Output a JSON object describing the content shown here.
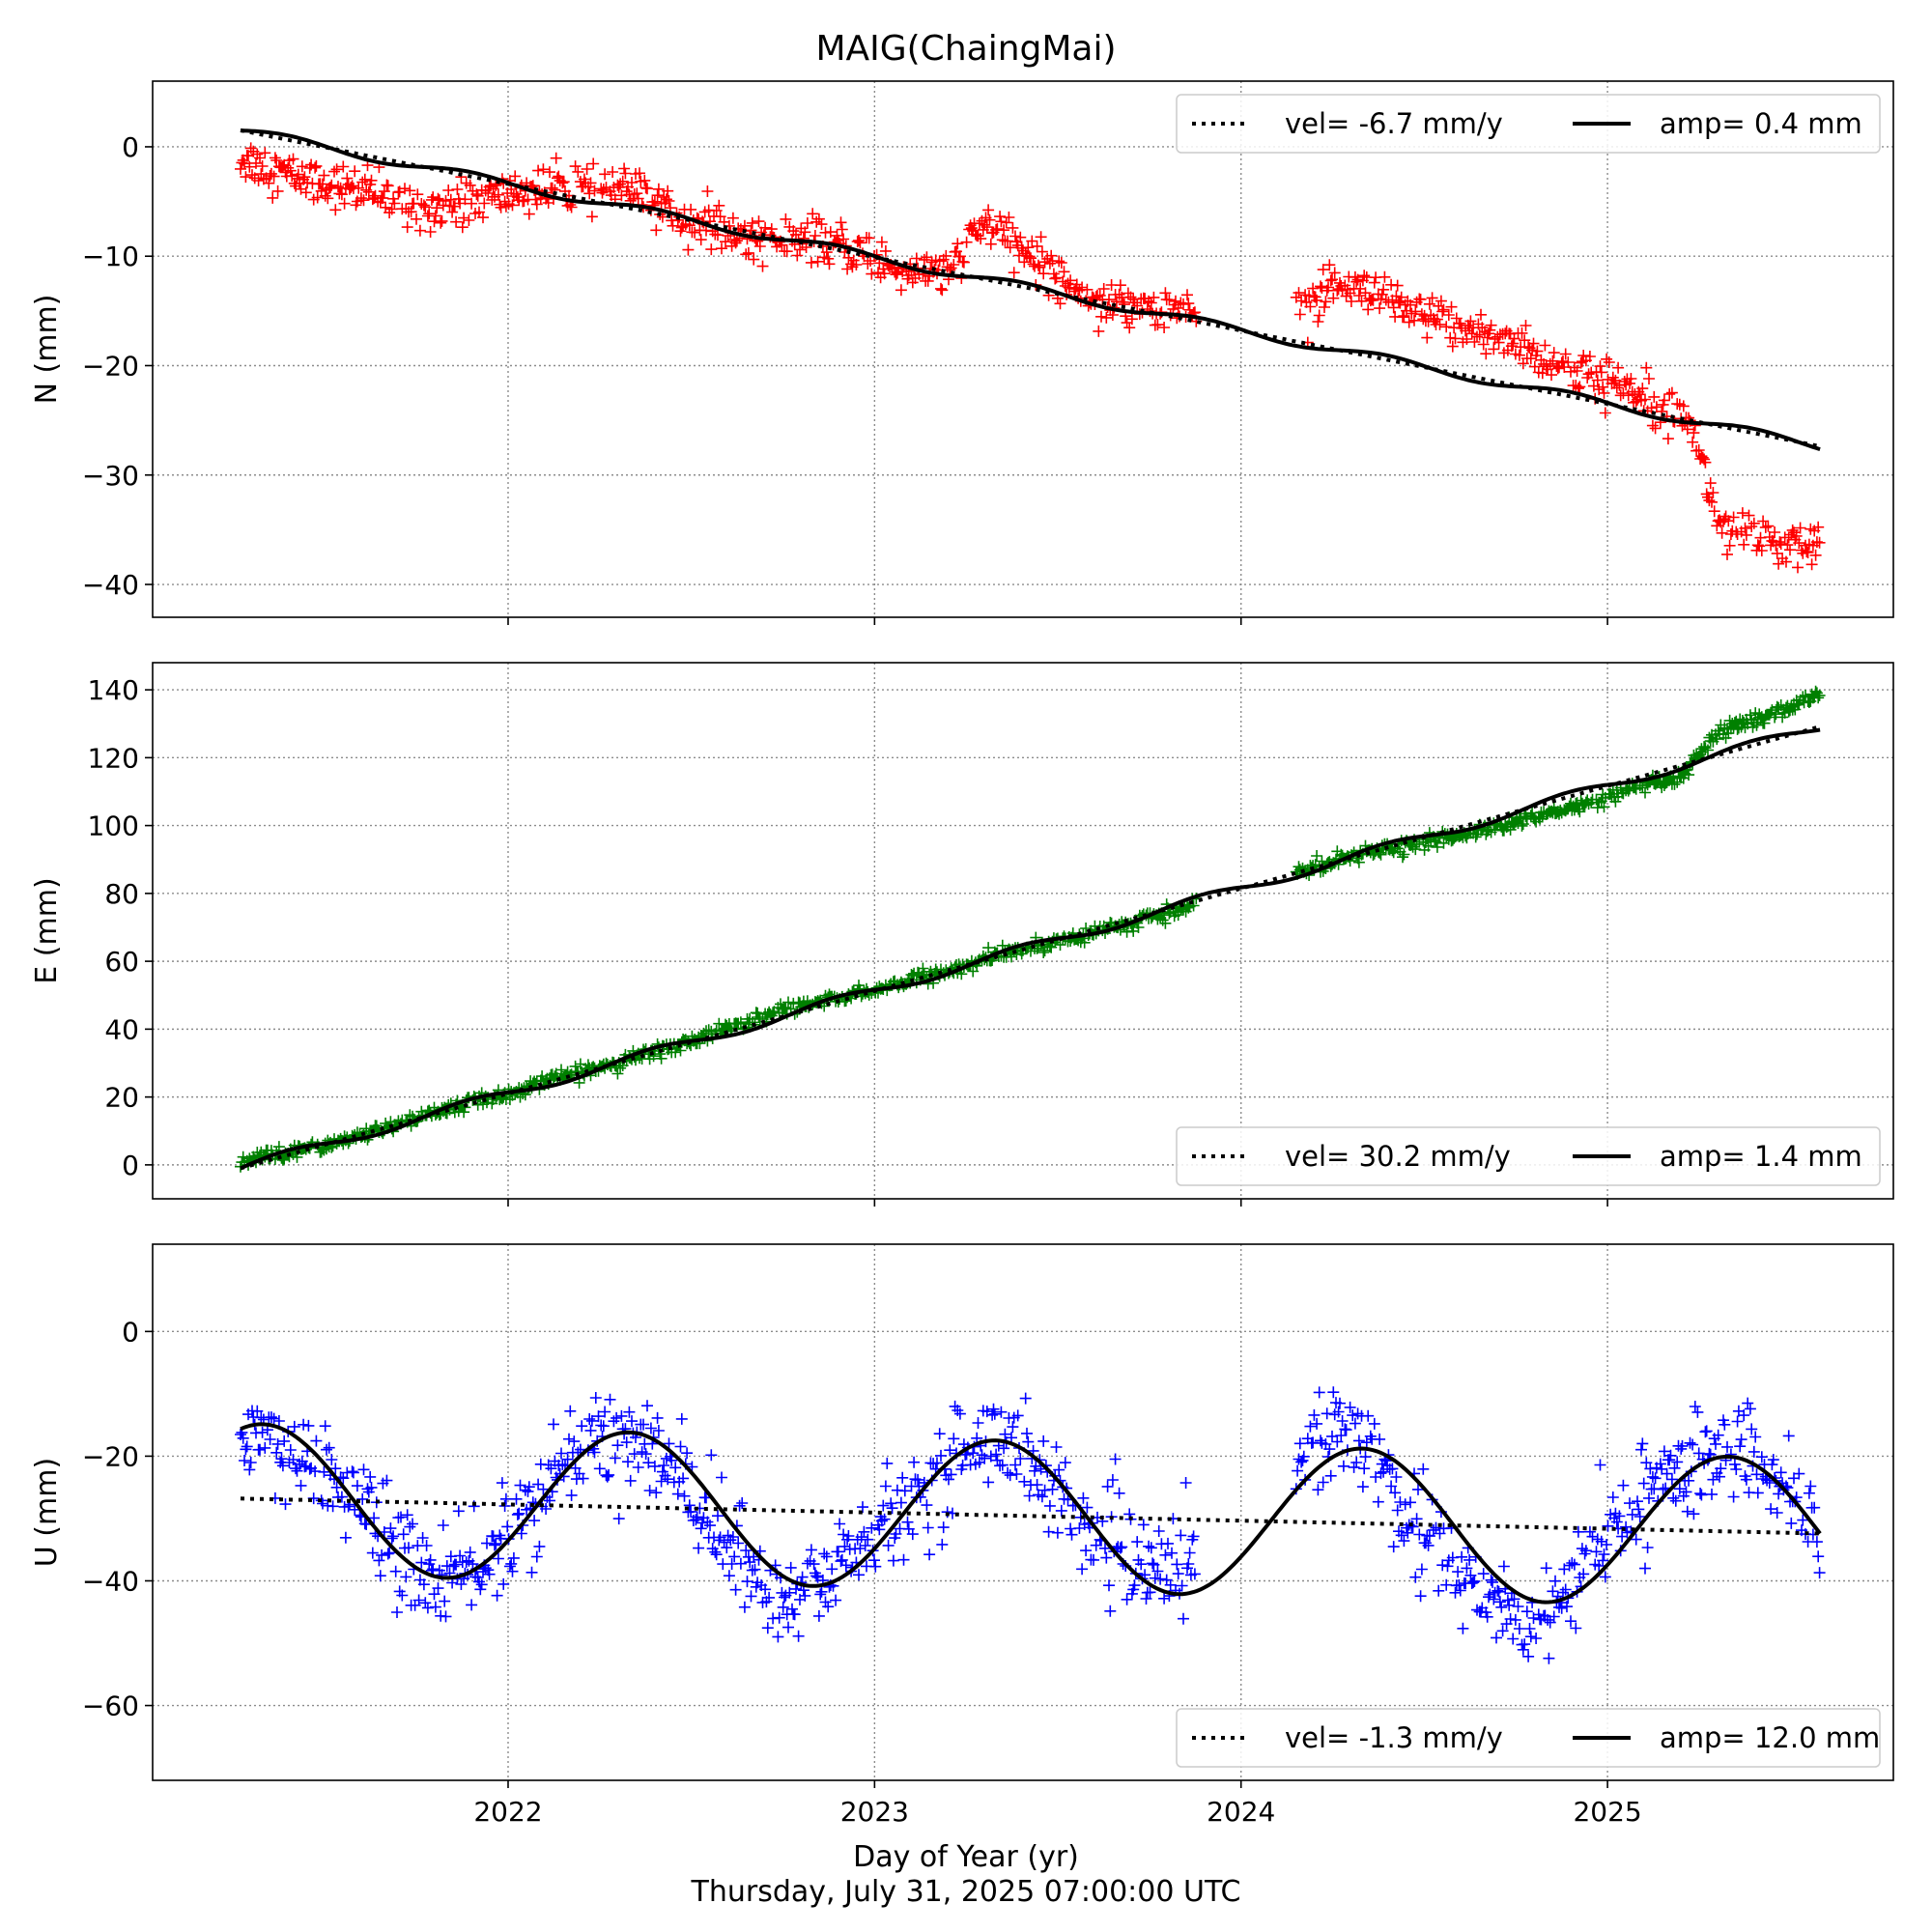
{
  "figure": {
    "title": "MAIG(ChaingMai)",
    "xlabel": "Day of Year (yr)",
    "footer": "Thursday, July 31, 2025 07:00:00 UTC",
    "x_ticks": [
      "2022",
      "2023",
      "2024",
      "2025"
    ],
    "x_tick_values": [
      2022,
      2023,
      2024,
      2025
    ],
    "xlim": [
      2021.03,
      2025.78
    ]
  },
  "chart_data": [
    {
      "type": "scatter",
      "ylabel": "N (mm)",
      "ylim": [
        -43,
        6
      ],
      "y_ticks": [
        0,
        -10,
        -20,
        -30,
        -40
      ],
      "y_tick_labels": [
        "0",
        "−10",
        "−20",
        "−30",
        "−40"
      ],
      "marker_color": "#ff0000",
      "marker": "+",
      "grid": true,
      "legend_position": "top-right",
      "legend": {
        "vel_label": "vel= -6.7 mm/y",
        "amp_label": "amp= 0.4 mm"
      },
      "fit": {
        "t0": 2021.27,
        "y0": 1.5,
        "velocity": -6.7,
        "amplitude": 0.4,
        "t_end": 2025.58
      },
      "observations": [
        {
          "x": 2021.27,
          "y": -1.0
        },
        {
          "x": 2021.35,
          "y": -2.0
        },
        {
          "x": 2021.45,
          "y": -3.0
        },
        {
          "x": 2021.6,
          "y": -4.0
        },
        {
          "x": 2021.75,
          "y": -5.5
        },
        {
          "x": 2021.9,
          "y": -5.0
        },
        {
          "x": 2022.05,
          "y": -4.0
        },
        {
          "x": 2022.2,
          "y": -4.0
        },
        {
          "x": 2022.3,
          "y": -3.5
        },
        {
          "x": 2022.45,
          "y": -6.0
        },
        {
          "x": 2022.6,
          "y": -8.0
        },
        {
          "x": 2022.75,
          "y": -8.5
        },
        {
          "x": 2022.9,
          "y": -9.0
        },
        {
          "x": 2023.05,
          "y": -11.0
        },
        {
          "x": 2023.2,
          "y": -11.5
        },
        {
          "x": 2023.3,
          "y": -7.0
        },
        {
          "x": 2023.45,
          "y": -10.5
        },
        {
          "x": 2023.6,
          "y": -14.0
        },
        {
          "x": 2023.75,
          "y": -14.5
        },
        {
          "x": 2023.85,
          "y": -15.0
        },
        {
          "x": 2024.17,
          "y": -14.0
        },
        {
          "x": 2024.3,
          "y": -13.0
        },
        {
          "x": 2024.45,
          "y": -15.0
        },
        {
          "x": 2024.6,
          "y": -16.5
        },
        {
          "x": 2024.75,
          "y": -18.0
        },
        {
          "x": 2024.9,
          "y": -20.5
        },
        {
          "x": 2025.05,
          "y": -22.0
        },
        {
          "x": 2025.15,
          "y": -23.0
        },
        {
          "x": 2025.22,
          "y": -24.5
        },
        {
          "x": 2025.3,
          "y": -34.0
        },
        {
          "x": 2025.4,
          "y": -36.0
        },
        {
          "x": 2025.5,
          "y": -36.5
        },
        {
          "x": 2025.58,
          "y": -37.0
        }
      ],
      "noise": 1.8
    },
    {
      "type": "scatter",
      "ylabel": "E (mm)",
      "ylim": [
        -10,
        148
      ],
      "y_ticks": [
        0,
        20,
        40,
        60,
        80,
        100,
        120,
        140
      ],
      "y_tick_labels": [
        "0",
        "20",
        "40",
        "60",
        "80",
        "100",
        "120",
        "140"
      ],
      "marker_color": "#008000",
      "marker": "+",
      "grid": true,
      "legend_position": "bottom-right",
      "legend": {
        "vel_label": "vel= 30.2 mm/y",
        "amp_label": "amp= 1.4 mm"
      },
      "fit": {
        "t0": 2021.27,
        "y0": -1.0,
        "velocity": 30.2,
        "amplitude": 1.4,
        "t_end": 2025.58
      },
      "observations": [
        {
          "x": 2021.27,
          "y": 1.0
        },
        {
          "x": 2021.4,
          "y": 4.0
        },
        {
          "x": 2021.55,
          "y": 7.0
        },
        {
          "x": 2021.7,
          "y": 12.0
        },
        {
          "x": 2021.85,
          "y": 17.0
        },
        {
          "x": 2022.0,
          "y": 21.0
        },
        {
          "x": 2022.15,
          "y": 26.0
        },
        {
          "x": 2022.3,
          "y": 30.0
        },
        {
          "x": 2022.45,
          "y": 35.0
        },
        {
          "x": 2022.6,
          "y": 40.0
        },
        {
          "x": 2022.75,
          "y": 46.0
        },
        {
          "x": 2022.9,
          "y": 49.0
        },
        {
          "x": 2023.05,
          "y": 53.0
        },
        {
          "x": 2023.2,
          "y": 57.0
        },
        {
          "x": 2023.35,
          "y": 62.0
        },
        {
          "x": 2023.5,
          "y": 66.0
        },
        {
          "x": 2023.65,
          "y": 70.0
        },
        {
          "x": 2023.8,
          "y": 74.0
        },
        {
          "x": 2023.85,
          "y": 76.0
        },
        {
          "x": 2024.17,
          "y": 87.0
        },
        {
          "x": 2024.3,
          "y": 91.0
        },
        {
          "x": 2024.45,
          "y": 94.0
        },
        {
          "x": 2024.6,
          "y": 97.0
        },
        {
          "x": 2024.75,
          "y": 101.0
        },
        {
          "x": 2024.9,
          "y": 105.0
        },
        {
          "x": 2025.05,
          "y": 110.0
        },
        {
          "x": 2025.2,
          "y": 114.0
        },
        {
          "x": 2025.3,
          "y": 127.0
        },
        {
          "x": 2025.45,
          "y": 133.0
        },
        {
          "x": 2025.58,
          "y": 138.0
        }
      ],
      "noise": 1.8
    },
    {
      "type": "scatter",
      "ylabel": "U (mm)",
      "ylim": [
        -72,
        14
      ],
      "y_ticks": [
        0,
        -20,
        -40,
        -60
      ],
      "y_tick_labels": [
        "0",
        "−20",
        "−40",
        "−60"
      ],
      "marker_color": "#0000ff",
      "marker": "+",
      "grid": true,
      "legend_position": "bottom-right",
      "legend": {
        "vel_label": "vel= -1.3 mm/y",
        "amp_label": "amp= 12.0 mm"
      },
      "fit": {
        "t0": 2021.27,
        "y0": -26.8,
        "velocity": -1.3,
        "amplitude": 12.0,
        "phase_peak": 2022.33,
        "t_end": 2025.58
      },
      "observations": [
        {
          "x": 2021.27,
          "y": -14.0
        },
        {
          "x": 2021.35,
          "y": -17.0
        },
        {
          "x": 2021.45,
          "y": -20.0
        },
        {
          "x": 2021.55,
          "y": -25.0
        },
        {
          "x": 2021.65,
          "y": -32.0
        },
        {
          "x": 2021.75,
          "y": -38.0
        },
        {
          "x": 2021.85,
          "y": -40.0
        },
        {
          "x": 2021.95,
          "y": -36.0
        },
        {
          "x": 2022.05,
          "y": -30.0
        },
        {
          "x": 2022.15,
          "y": -22.0
        },
        {
          "x": 2022.25,
          "y": -17.0
        },
        {
          "x": 2022.35,
          "y": -17.0
        },
        {
          "x": 2022.45,
          "y": -22.0
        },
        {
          "x": 2022.55,
          "y": -30.0
        },
        {
          "x": 2022.65,
          "y": -38.0
        },
        {
          "x": 2022.75,
          "y": -45.0
        },
        {
          "x": 2022.85,
          "y": -40.0
        },
        {
          "x": 2022.95,
          "y": -34.0
        },
        {
          "x": 2023.05,
          "y": -30.0
        },
        {
          "x": 2023.15,
          "y": -25.0
        },
        {
          "x": 2023.25,
          "y": -18.0
        },
        {
          "x": 2023.35,
          "y": -17.0
        },
        {
          "x": 2023.45,
          "y": -22.0
        },
        {
          "x": 2023.55,
          "y": -30.0
        },
        {
          "x": 2023.65,
          "y": -35.0
        },
        {
          "x": 2023.75,
          "y": -38.0
        },
        {
          "x": 2023.85,
          "y": -38.0
        },
        {
          "x": 2024.17,
          "y": -18.0
        },
        {
          "x": 2024.3,
          "y": -16.0
        },
        {
          "x": 2024.4,
          "y": -22.0
        },
        {
          "x": 2024.5,
          "y": -32.0
        },
        {
          "x": 2024.6,
          "y": -40.0
        },
        {
          "x": 2024.7,
          "y": -43.0
        },
        {
          "x": 2024.8,
          "y": -47.0
        },
        {
          "x": 2024.9,
          "y": -40.0
        },
        {
          "x": 2025.0,
          "y": -34.0
        },
        {
          "x": 2025.1,
          "y": -25.0
        },
        {
          "x": 2025.2,
          "y": -22.0
        },
        {
          "x": 2025.3,
          "y": -20.0
        },
        {
          "x": 2025.4,
          "y": -20.0
        },
        {
          "x": 2025.5,
          "y": -26.0
        },
        {
          "x": 2025.58,
          "y": -33.0
        }
      ],
      "noise": 7.0
    }
  ]
}
